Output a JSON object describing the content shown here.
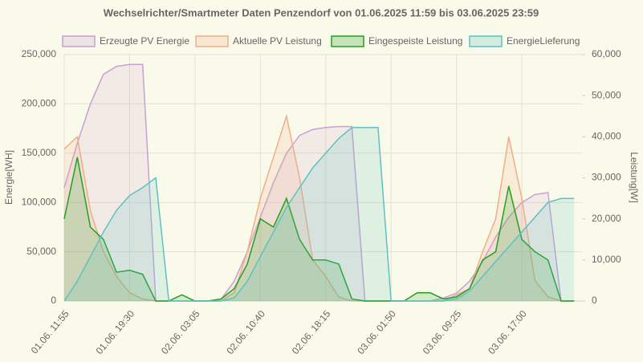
{
  "chart_data": {
    "type": "line",
    "title": "Wechselrichter/Smartmeter Daten Penzendorf von 01.06.2025 11:59 bis 03.06.2025 23:59",
    "y_label": "Energie[WH]",
    "y2_label": "Leistung[W]",
    "categories": [
      "01.06. 11:55",
      null,
      null,
      null,
      null,
      "01.06. 19:30",
      null,
      null,
      null,
      null,
      "02.06. 03:05",
      null,
      null,
      null,
      null,
      "02.06. 10:40",
      null,
      null,
      null,
      null,
      "02.06. 18:15",
      null,
      null,
      null,
      null,
      "03.06. 01:50",
      null,
      null,
      null,
      null,
      "03.06. 09:25",
      null,
      null,
      null,
      null,
      "03.06. 17:00",
      null,
      null,
      null,
      null
    ],
    "ylim": [
      0,
      250000
    ],
    "yticks": [
      {
        "value": 0,
        "label": "0"
      },
      {
        "value": 50000,
        "label": "50,000"
      },
      {
        "value": 100000,
        "label": "100,000"
      },
      {
        "value": 150000,
        "label": "150,000"
      },
      {
        "value": 200000,
        "label": "200,000"
      },
      {
        "value": 250000,
        "label": "250,000"
      }
    ],
    "y2lim": [
      0,
      60000
    ],
    "y2ticks": [
      {
        "value": 0,
        "label": "0"
      },
      {
        "value": 10000,
        "label": "10,000"
      },
      {
        "value": 20000,
        "label": "20,000"
      },
      {
        "value": 30000,
        "label": "30,000"
      },
      {
        "value": 40000,
        "label": "40,000"
      },
      {
        "value": 50000,
        "label": "50,000"
      },
      {
        "value": 60000,
        "label": "60,000"
      }
    ],
    "grid": true,
    "series": [
      {
        "name": "Erzeugte PV Energie",
        "color": "#c9a0d2",
        "values": [
          115000,
          160000,
          200000,
          230000,
          238000,
          240000,
          240000,
          0,
          0,
          0,
          0,
          0,
          2000,
          20000,
          50000,
          85000,
          120000,
          150000,
          168000,
          174000,
          176000,
          177000,
          177000,
          0,
          0,
          0,
          0,
          0,
          0,
          3000,
          8000,
          20000,
          40000,
          65000,
          85000,
          100000,
          108000,
          110000,
          0,
          0
        ]
      },
      {
        "name": "Aktuelle PV Leistung",
        "color": "#f0ad8a",
        "axis": "y2",
        "values": [
          37000,
          40000,
          22000,
          12000,
          6000,
          2000,
          500,
          0,
          0,
          0,
          0,
          0,
          0,
          2000,
          12000,
          25000,
          35000,
          45000,
          30000,
          10000,
          6000,
          1000,
          0,
          0,
          0,
          0,
          0,
          0,
          0,
          0,
          1500,
          3000,
          12000,
          20000,
          40000,
          25000,
          5000,
          1000,
          0,
          0
        ]
      },
      {
        "name": "Eingespeiste Leistung",
        "color": "#22a022",
        "axis": "y2",
        "values": [
          20000,
          35000,
          18000,
          15000,
          7000,
          7500,
          6500,
          0,
          0,
          1500,
          0,
          0,
          500,
          3000,
          9000,
          20000,
          18000,
          25000,
          15000,
          10000,
          10000,
          9000,
          500,
          0,
          0,
          0,
          0,
          2000,
          2000,
          500,
          1000,
          3000,
          10000,
          12000,
          28000,
          15000,
          12000,
          10000,
          0,
          0
        ]
      },
      {
        "name": "EnergieLieferung",
        "color": "#5cc2c2",
        "values": [
          0,
          20000,
          45000,
          70000,
          92000,
          107000,
          115000,
          125000,
          0,
          0,
          0,
          0,
          0,
          3000,
          20000,
          45000,
          70000,
          95000,
          115000,
          135000,
          150000,
          165000,
          176000,
          176000,
          176000,
          0,
          0,
          0,
          0,
          0,
          2000,
          10000,
          25000,
          40000,
          55000,
          70000,
          85000,
          100000,
          104000,
          104000
        ]
      }
    ]
  }
}
